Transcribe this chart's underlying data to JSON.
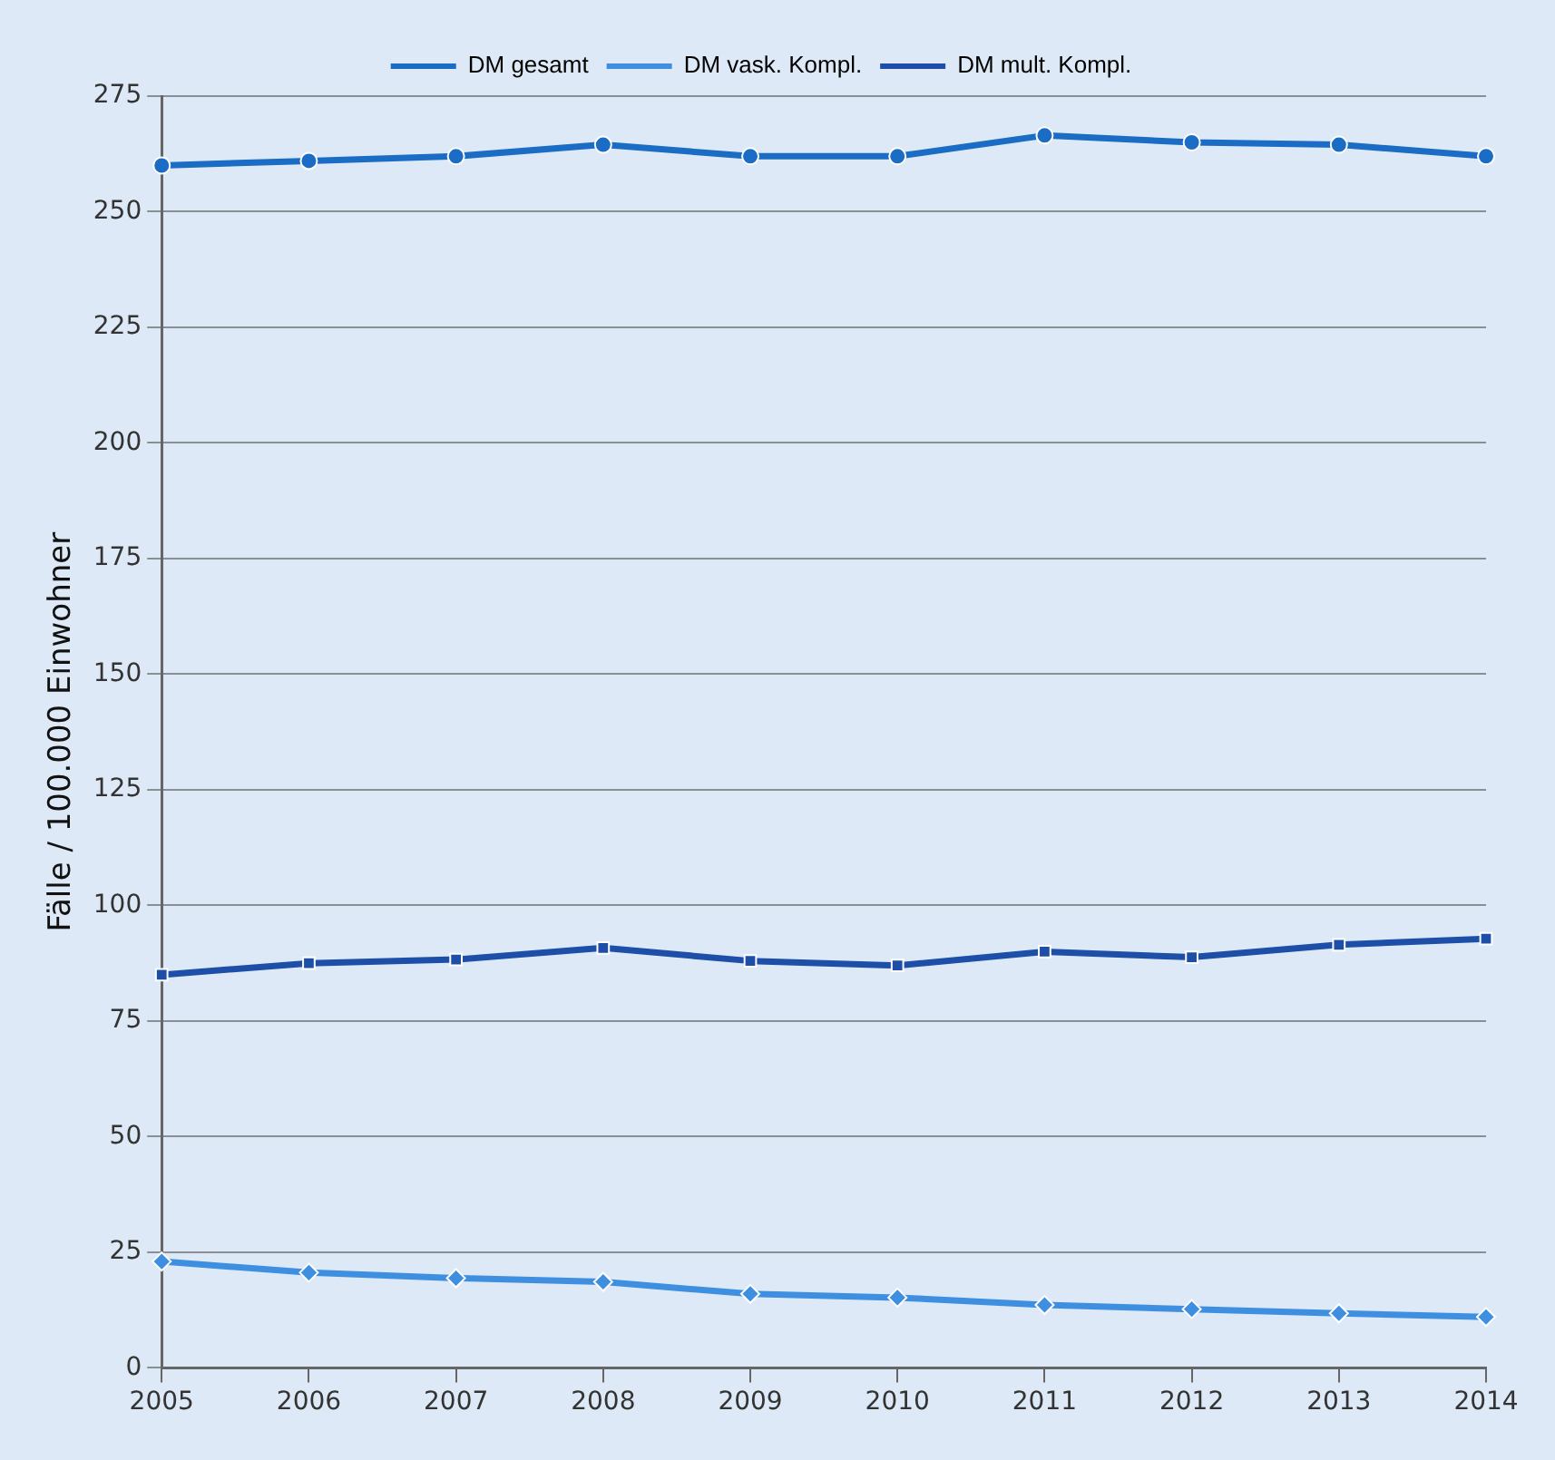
{
  "chart_data": {
    "type": "line",
    "ylabel": "Fälle / 100.000 Einwohner",
    "categories": [
      "2005",
      "2006",
      "2007",
      "2008",
      "2009",
      "2010",
      "2011",
      "2012",
      "2013",
      "2014"
    ],
    "series": [
      {
        "name": "DM gesamt",
        "color": "#1a6cc4",
        "marker": "circle",
        "values": [
          260,
          261,
          262,
          264.5,
          262,
          262,
          266.5,
          265,
          264.5,
          262
        ]
      },
      {
        "name": "DM vask. Kompl.",
        "color": "#3f8fe0",
        "marker": "diamond",
        "values": [
          23,
          20.6,
          19.4,
          18.6,
          16,
          15.2,
          13.6,
          12.7,
          11.8,
          11
        ]
      },
      {
        "name": "DM mult. Kompl.",
        "color": "#1d4fa8",
        "marker": "square",
        "values": [
          85,
          87.5,
          88.3,
          90.8,
          88,
          87,
          90,
          88.8,
          91.5,
          92.8
        ]
      }
    ],
    "ylim": [
      0,
      275
    ],
    "yticks": [
      0,
      25,
      50,
      75,
      100,
      125,
      150,
      175,
      200,
      225,
      250,
      275
    ],
    "grid": "y",
    "legend": "top",
    "line_style": "solid"
  }
}
